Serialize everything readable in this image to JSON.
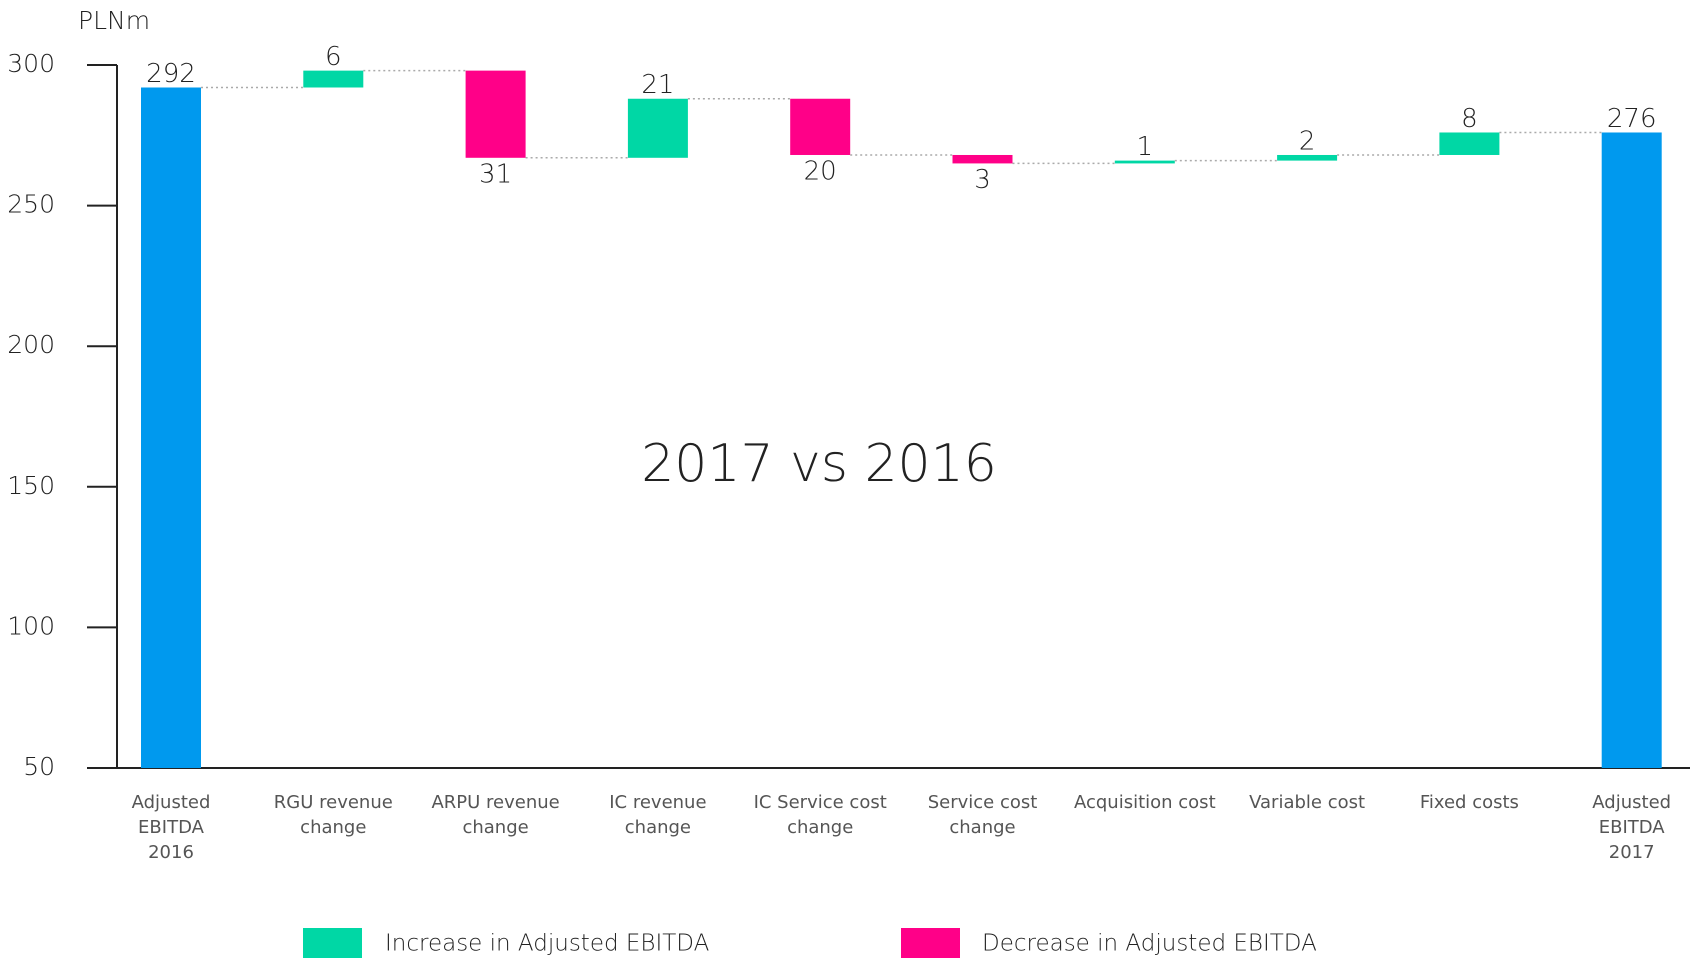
{
  "chart_data": {
    "type": "waterfall",
    "title": "2017 vs 2016",
    "y_axis_label": "PLNm",
    "categories": [
      "Adjusted EBITDA 2016",
      "RGU revenue change",
      "ARPU revenue change",
      "IC revenue change",
      "IC Service cost change",
      "Service cost change",
      "Acquisition cost",
      "Variable cost",
      "Fixed costs",
      "Adjusted EBITDA 2017"
    ],
    "measure": [
      "total",
      "relative",
      "relative",
      "relative",
      "relative",
      "relative",
      "relative",
      "relative",
      "relative",
      "total"
    ],
    "values": [
      292,
      6,
      -31,
      21,
      -20,
      -3,
      1,
      2,
      8,
      276
    ],
    "value_labels": [
      "292",
      "6",
      "31",
      "21",
      "20",
      "3",
      "1",
      "2",
      "8",
      "276"
    ],
    "total_color": "#0099ee",
    "increase": {
      "name": "Increase in Adjusted EBITDA",
      "color": "#00d7a5"
    },
    "decrease": {
      "name": "Decrease in Adjusted EBITDA",
      "color": "#ff0088"
    },
    "ylim": [
      50,
      300
    ],
    "yticks": [
      50,
      100,
      150,
      200,
      250,
      300
    ]
  }
}
